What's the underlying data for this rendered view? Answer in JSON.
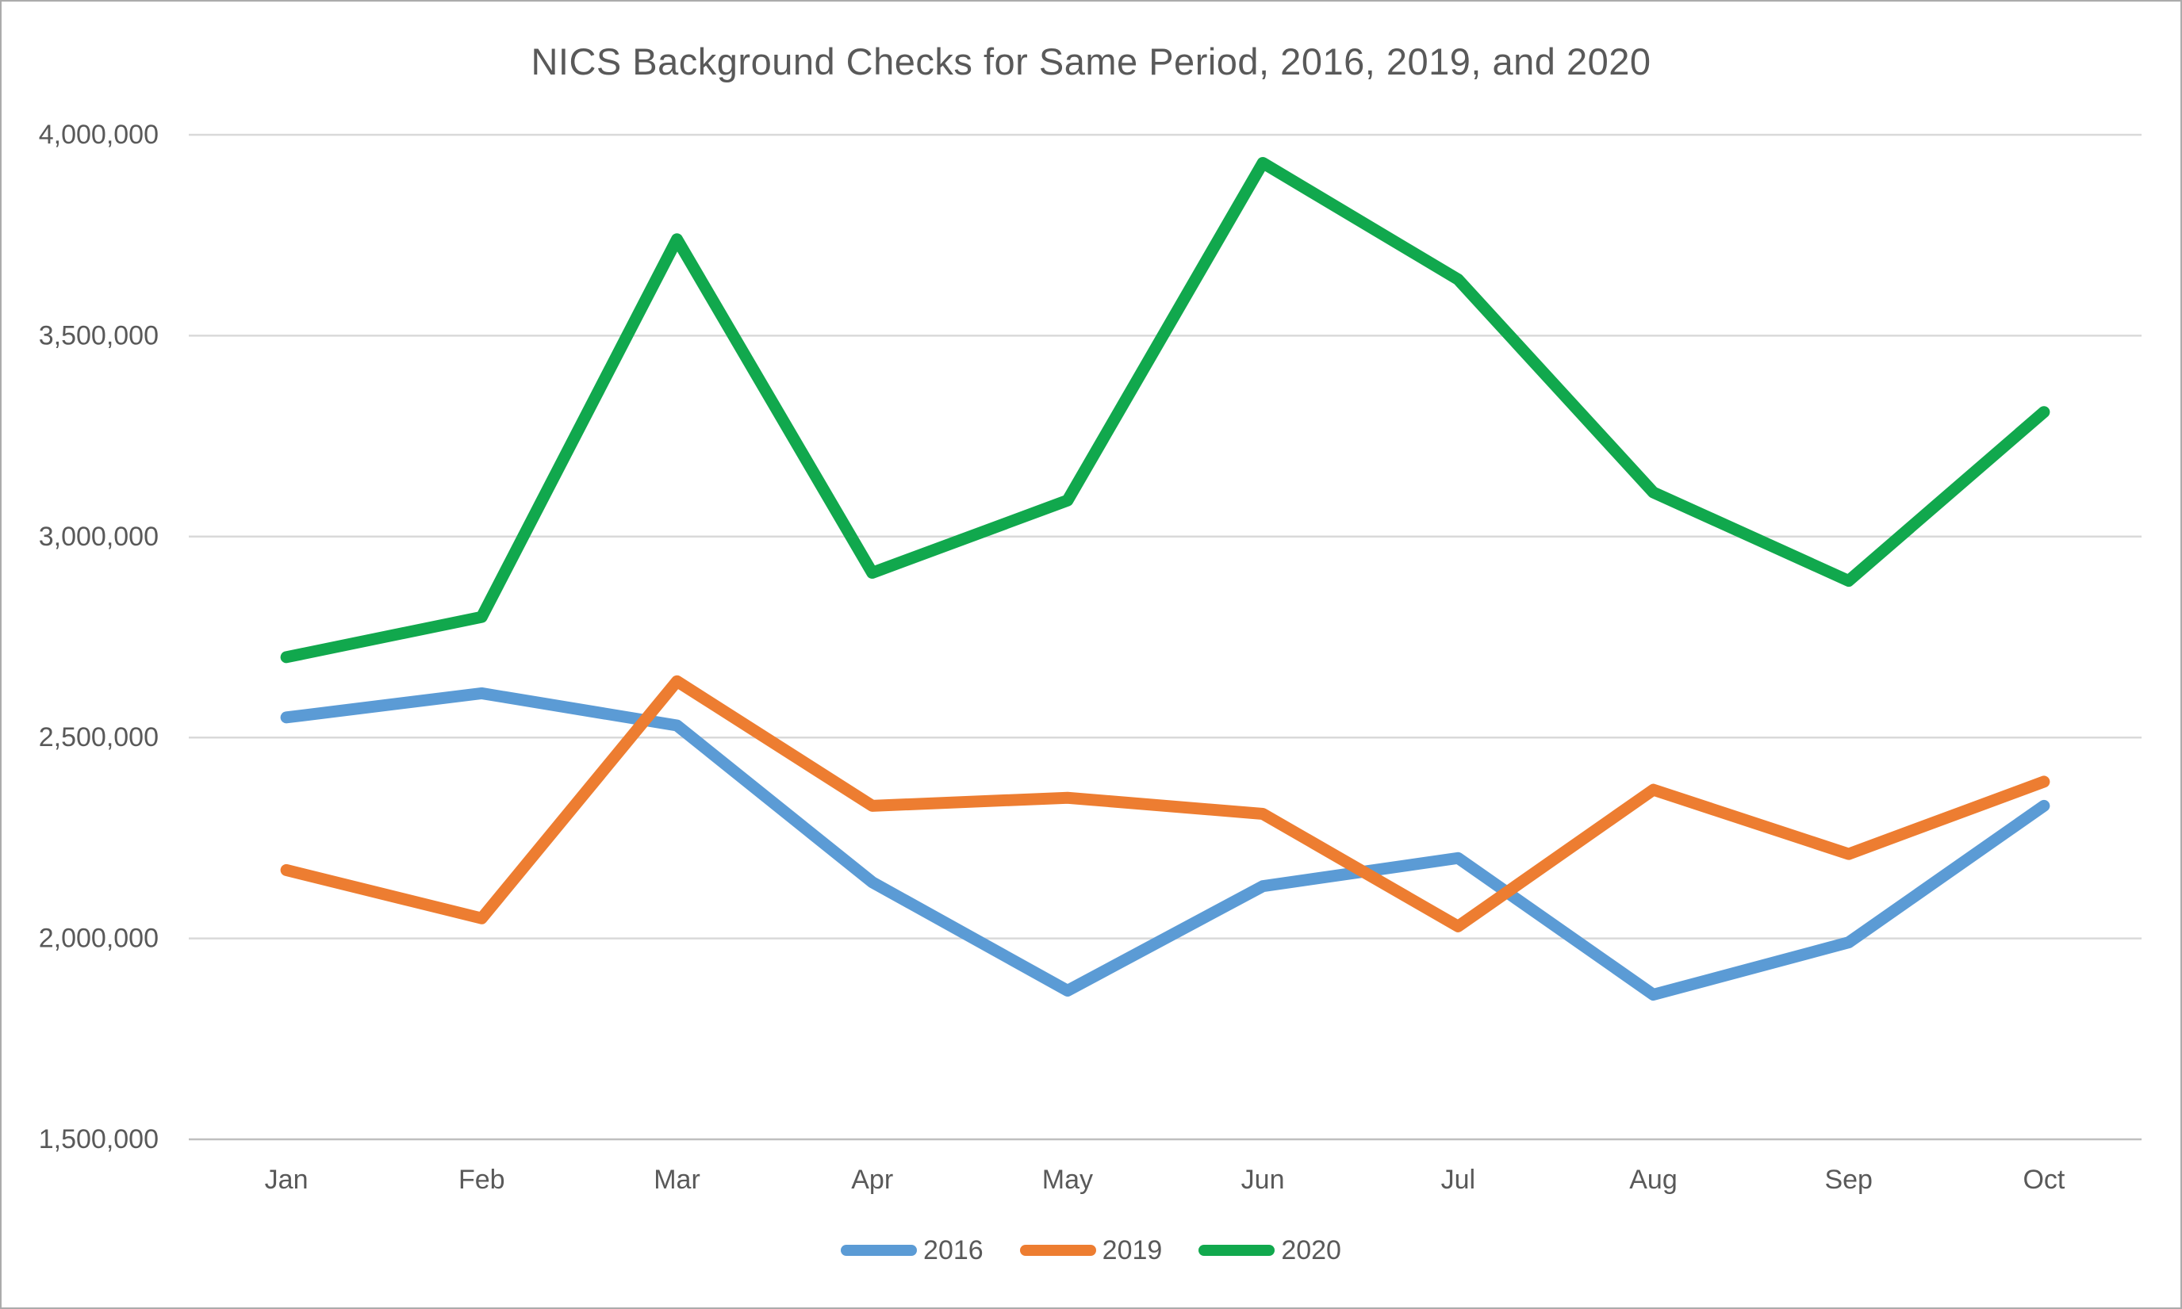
{
  "colors": {
    "text": "#595959",
    "gridline": "#d9d9d9",
    "axis_line": "#bfbfbf",
    "border": "#ababab",
    "background": "#ffffff"
  },
  "chart_data": {
    "type": "line",
    "title": "NICS Background Checks for Same Period, 2016, 2019, and 2020",
    "xlabel": "",
    "ylabel": "",
    "grid": true,
    "legend_position": "bottom",
    "categories": [
      "Jan",
      "Feb",
      "Mar",
      "Apr",
      "May",
      "Jun",
      "Jul",
      "Aug",
      "Sep",
      "Oct"
    ],
    "series": [
      {
        "name": "2016",
        "color": "#5b9bd5",
        "values": [
          2550000,
          2610000,
          2530000,
          2140000,
          1870000,
          2130000,
          2200000,
          1860000,
          1990000,
          2330000
        ]
      },
      {
        "name": "2019",
        "color": "#ed7d31",
        "values": [
          2170000,
          2050000,
          2640000,
          2330000,
          2350000,
          2310000,
          2030000,
          2370000,
          2210000,
          2390000
        ]
      },
      {
        "name": "2020",
        "color": "#11a84d",
        "values": [
          2700000,
          2800000,
          3740000,
          2910000,
          3090000,
          3930000,
          3640000,
          3110000,
          2890000,
          3310000
        ]
      }
    ],
    "ylim": [
      1500000,
      4000000
    ],
    "yticks": {
      "values": [
        4000000,
        3500000,
        3000000,
        2500000,
        2000000,
        1500000
      ],
      "labels": [
        "4,000,000",
        "3,500,000",
        "3,000,000",
        "2,500,000",
        "2,000,000",
        "1,500,000"
      ]
    }
  }
}
